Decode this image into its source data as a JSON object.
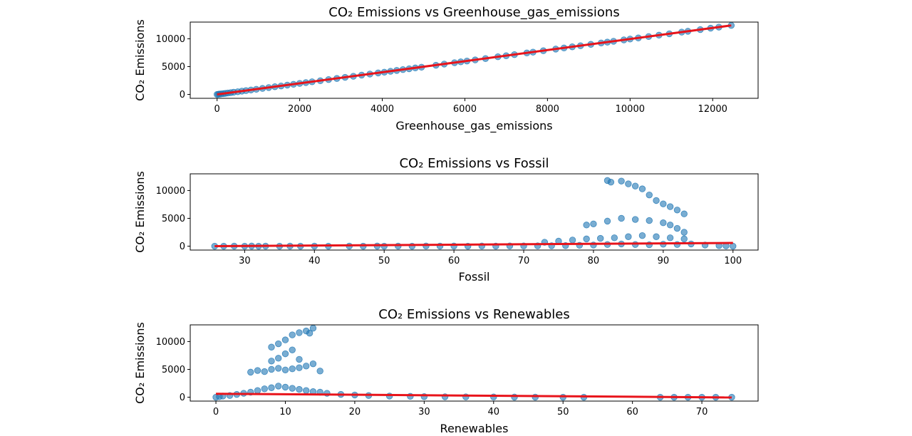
{
  "chart_data": [
    {
      "type": "scatter",
      "title": "CO₂ Emissions vs Greenhouse_gas_emissions",
      "xlabel": "Greenhouse_gas_emissions",
      "ylabel": "CO₂ Emissions",
      "xlim": [
        -650,
        13100
      ],
      "ylim": [
        -700,
        13000
      ],
      "xticks": [
        0,
        2000,
        4000,
        6000,
        8000,
        10000,
        12000
      ],
      "xtick_labels": [
        "0",
        "2000",
        "4000",
        "6000",
        "8000",
        "10000",
        "12000"
      ],
      "yticks": [
        0,
        5000,
        10000
      ],
      "ytick_labels": [
        "0",
        "5000",
        "10000"
      ],
      "fit_line": {
        "x": [
          0,
          12450
        ],
        "y": [
          0,
          12400
        ]
      },
      "series": [
        {
          "points": [
            [
              0,
              0
            ],
            [
              30,
              25
            ],
            [
              60,
              55
            ],
            [
              100,
              90
            ],
            [
              150,
              140
            ],
            [
              200,
              190
            ],
            [
              260,
              250
            ],
            [
              330,
              320
            ],
            [
              400,
              390
            ],
            [
              500,
              480
            ],
            [
              600,
              590
            ],
            [
              700,
              680
            ],
            [
              820,
              800
            ],
            [
              950,
              930
            ],
            [
              1100,
              1080
            ],
            [
              1250,
              1230
            ],
            [
              1400,
              1380
            ],
            [
              1550,
              1520
            ],
            [
              1700,
              1680
            ],
            [
              1850,
              1820
            ],
            [
              2000,
              1980
            ],
            [
              2150,
              2120
            ],
            [
              2300,
              2270
            ],
            [
              2500,
              2460
            ],
            [
              2700,
              2670
            ],
            [
              2900,
              2870
            ],
            [
              3100,
              3070
            ],
            [
              3300,
              3260
            ],
            [
              3500,
              3470
            ],
            [
              3700,
              3660
            ],
            [
              3900,
              3860
            ],
            [
              4050,
              4000
            ],
            [
              4200,
              4160
            ],
            [
              4350,
              4310
            ],
            [
              4500,
              4460
            ],
            [
              4650,
              4610
            ],
            [
              4800,
              4760
            ],
            [
              4950,
              4900
            ],
            [
              5300,
              5250
            ],
            [
              5500,
              5460
            ],
            [
              5750,
              5700
            ],
            [
              5900,
              5850
            ],
            [
              6050,
              6000
            ],
            [
              6250,
              6200
            ],
            [
              6500,
              6450
            ],
            [
              6800,
              6760
            ],
            [
              7000,
              6950
            ],
            [
              7200,
              7150
            ],
            [
              7500,
              7450
            ],
            [
              7650,
              7600
            ],
            [
              7900,
              7850
            ],
            [
              8200,
              8150
            ],
            [
              8400,
              8350
            ],
            [
              8600,
              8550
            ],
            [
              8800,
              8750
            ],
            [
              9050,
              9000
            ],
            [
              9300,
              9250
            ],
            [
              9450,
              9400
            ],
            [
              9600,
              9550
            ],
            [
              9850,
              9800
            ],
            [
              10000,
              9950
            ],
            [
              10200,
              10150
            ],
            [
              10450,
              10400
            ],
            [
              10700,
              10650
            ],
            [
              10950,
              10900
            ],
            [
              11250,
              11200
            ],
            [
              11400,
              11350
            ],
            [
              11700,
              11650
            ],
            [
              11950,
              11900
            ],
            [
              12150,
              12100
            ],
            [
              12450,
              12400
            ]
          ]
        }
      ]
    },
    {
      "type": "scatter",
      "title": "CO₂ Emissions vs Fossil",
      "xlabel": "Fossil",
      "ylabel": "CO₂ Emissions",
      "xlim": [
        22.2,
        103.6
      ],
      "ylim": [
        -700,
        13000
      ],
      "xticks": [
        30,
        40,
        50,
        60,
        70,
        80,
        90,
        100
      ],
      "xtick_labels": [
        "30",
        "40",
        "50",
        "60",
        "70",
        "80",
        "90",
        "100"
      ],
      "yticks": [
        0,
        5000,
        10000
      ],
      "ytick_labels": [
        "0",
        "5000",
        "10000"
      ],
      "fit_line": {
        "x": [
          25.7,
          100
        ],
        "y": [
          0,
          580
        ]
      },
      "series": [
        {
          "points": [
            [
              25.7,
              0
            ],
            [
              27,
              0
            ],
            [
              28.5,
              10
            ],
            [
              30,
              0
            ],
            [
              31,
              20
            ],
            [
              32,
              0
            ],
            [
              33,
              10
            ],
            [
              35,
              0
            ],
            [
              36.5,
              10
            ],
            [
              38,
              0
            ],
            [
              40,
              5
            ],
            [
              42,
              0
            ],
            [
              45,
              10
            ],
            [
              47,
              0
            ],
            [
              49,
              20
            ],
            [
              50,
              0
            ],
            [
              52,
              10
            ],
            [
              54,
              0
            ],
            [
              56,
              30
            ],
            [
              58,
              10
            ],
            [
              60,
              20
            ],
            [
              62,
              0
            ],
            [
              64,
              30
            ],
            [
              66,
              10
            ],
            [
              68,
              50
            ],
            [
              70,
              40
            ],
            [
              72,
              60
            ],
            [
              74,
              80
            ],
            [
              76,
              100
            ],
            [
              78,
              150
            ],
            [
              80,
              200
            ],
            [
              82,
              300
            ],
            [
              84,
              400
            ],
            [
              86,
              300
            ],
            [
              88,
              250
            ],
            [
              90,
              350
            ],
            [
              92,
              300
            ],
            [
              94,
              400
            ],
            [
              96,
              200
            ],
            [
              98,
              100
            ],
            [
              99,
              50
            ],
            [
              100,
              0
            ],
            [
              73,
              700
            ],
            [
              75,
              900
            ],
            [
              77,
              1100
            ],
            [
              79,
              1300
            ],
            [
              81,
              1400
            ],
            [
              83,
              1500
            ],
            [
              85,
              1700
            ],
            [
              87,
              1900
            ],
            [
              89,
              1700
            ],
            [
              91,
              1500
            ],
            [
              93,
              1300
            ],
            [
              79,
              3800
            ],
            [
              80,
              4000
            ],
            [
              82,
              4500
            ],
            [
              84,
              5000
            ],
            [
              86,
              4800
            ],
            [
              88,
              4600
            ],
            [
              90,
              4200
            ],
            [
              91,
              3800
            ],
            [
              92,
              3200
            ],
            [
              93,
              2500
            ],
            [
              82,
              11800
            ],
            [
              82.5,
              11500
            ],
            [
              84,
              11700
            ],
            [
              85,
              11200
            ],
            [
              86,
              10800
            ],
            [
              87,
              10300
            ],
            [
              88,
              9200
            ],
            [
              89,
              8200
            ],
            [
              90,
              7600
            ],
            [
              91,
              7100
            ],
            [
              92,
              6500
            ],
            [
              93,
              5800
            ]
          ]
        }
      ]
    },
    {
      "type": "scatter",
      "title": "CO₂ Emissions vs Renewables",
      "xlabel": "Renewables",
      "ylabel": "CO₂ Emissions",
      "xlim": [
        -3.7,
        78.1
      ],
      "ylim": [
        -700,
        13000
      ],
      "xticks": [
        0,
        10,
        20,
        30,
        40,
        50,
        60,
        70
      ],
      "xtick_labels": [
        "0",
        "10",
        "20",
        "30",
        "40",
        "50",
        "60",
        "70"
      ],
      "yticks": [
        0,
        5000,
        10000
      ],
      "ytick_labels": [
        "0",
        "5000",
        "10000"
      ],
      "fit_line": {
        "x": [
          0,
          74.3
        ],
        "y": [
          620,
          -50
        ]
      },
      "series": [
        {
          "points": [
            [
              0,
              0
            ],
            [
              0.5,
              100
            ],
            [
              1,
              200
            ],
            [
              2,
              300
            ],
            [
              3,
              500
            ],
            [
              4,
              700
            ],
            [
              5,
              900
            ],
            [
              6,
              1200
            ],
            [
              7,
              1500
            ],
            [
              8,
              1700
            ],
            [
              9,
              2000
            ],
            [
              10,
              1800
            ],
            [
              11,
              1600
            ],
            [
              12,
              1400
            ],
            [
              13,
              1200
            ],
            [
              14,
              1000
            ],
            [
              15,
              900
            ],
            [
              16,
              700
            ],
            [
              18,
              500
            ],
            [
              20,
              400
            ],
            [
              22,
              300
            ],
            [
              25,
              200
            ],
            [
              28,
              150
            ],
            [
              30,
              100
            ],
            [
              33,
              80
            ],
            [
              36,
              60
            ],
            [
              40,
              40
            ],
            [
              43,
              20
            ],
            [
              46,
              10
            ],
            [
              50,
              0
            ],
            [
              53,
              0
            ],
            [
              64,
              0
            ],
            [
              66,
              0
            ],
            [
              68,
              0
            ],
            [
              70,
              0
            ],
            [
              72,
              0
            ],
            [
              74.3,
              0
            ],
            [
              5,
              4500
            ],
            [
              6,
              4800
            ],
            [
              7,
              4600
            ],
            [
              8,
              5000
            ],
            [
              9,
              5200
            ],
            [
              10,
              4900
            ],
            [
              11,
              5100
            ],
            [
              12,
              5300
            ],
            [
              13,
              5600
            ],
            [
              14,
              6000
            ],
            [
              15,
              4700
            ],
            [
              8,
              6500
            ],
            [
              9,
              7000
            ],
            [
              10,
              7800
            ],
            [
              11,
              8500
            ],
            [
              12,
              6800
            ],
            [
              8,
              9000
            ],
            [
              9,
              9600
            ],
            [
              10,
              10300
            ],
            [
              11,
              11200
            ],
            [
              12,
              11600
            ],
            [
              13,
              11900
            ],
            [
              14,
              12400
            ],
            [
              13.5,
              11500
            ]
          ]
        }
      ]
    }
  ]
}
